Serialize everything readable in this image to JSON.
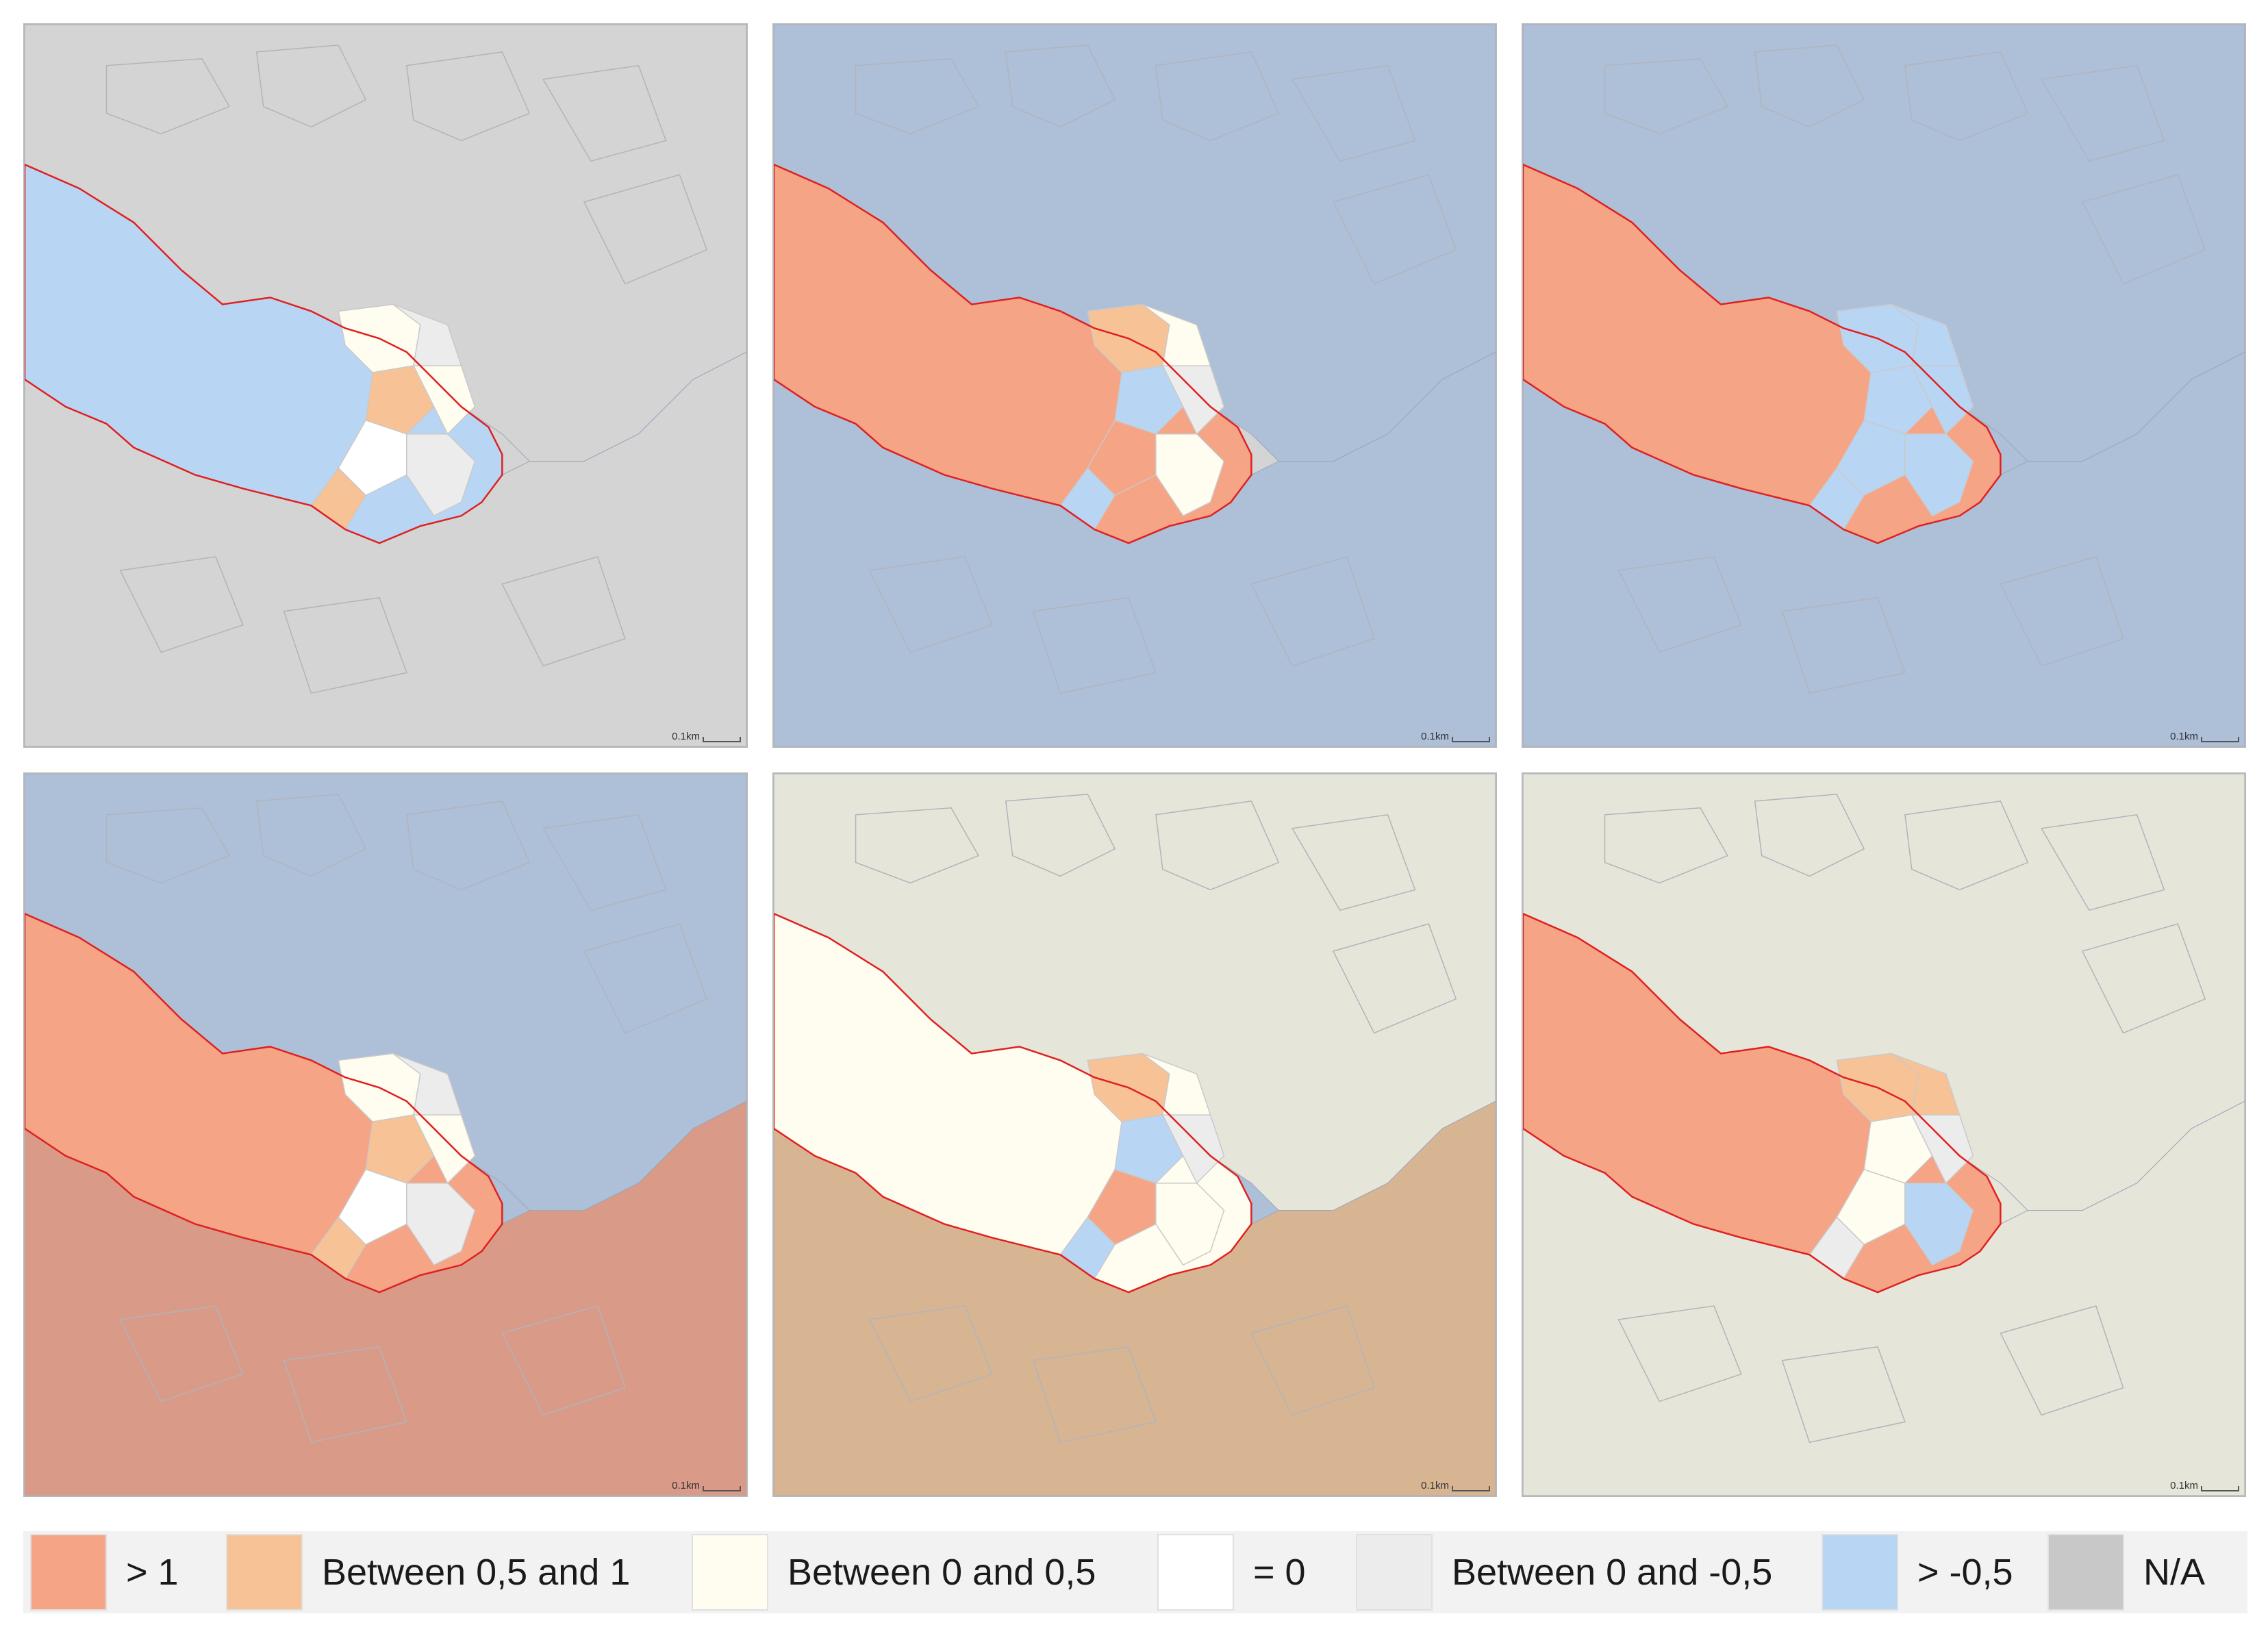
{
  "scale_label": "0.1km",
  "colors": {
    "gt1": "#f5a486",
    "b05_1": "#f7c396",
    "b0_05": "#fffdf0",
    "eq0": "#ffffff",
    "b0_m05": "#ececec",
    "gtm05": "#b9d5f4",
    "na": "#c8c8c8",
    "base_gray": "#d4d4d4",
    "base_blue": "#aebfd8",
    "base_tan": "#d8b592",
    "base_rose": "#d99a88",
    "base_cream": "#e6e5da",
    "boundary": "#e02020"
  },
  "legend": [
    {
      "label": "> 1",
      "color": "#f5a486"
    },
    {
      "label": "Between 0,5 and 1",
      "color": "#f7c396"
    },
    {
      "label": "Between 0 and 0,5",
      "color": "#fffdf0"
    },
    {
      "label": "= 0",
      "color": "#ffffff"
    },
    {
      "label": "Between 0 and -0,5",
      "color": "#ececec"
    },
    {
      "label": "> -0,5",
      "color": "#b9d5f4"
    },
    {
      "label": "N/A",
      "color": "#c8c8c8"
    }
  ],
  "maps": [
    {
      "id": "map-1",
      "background": "base_gray",
      "study_area": "gtm05",
      "land_above": "base_gray",
      "land_below": "base_gray",
      "bay": "mixed-cream"
    },
    {
      "id": "map-2",
      "background": "base_gray",
      "study_area": "gt1",
      "land_above": "base_blue",
      "land_below": "base_blue",
      "bay": "mixed-warm"
    },
    {
      "id": "map-3",
      "background": "base_blue",
      "study_area": "gt1",
      "land_above": "base_blue",
      "land_below": "base_blue",
      "bay": "blue-ring"
    },
    {
      "id": "map-4",
      "background": "base_blue",
      "study_area": "gt1",
      "land_above": "base_blue",
      "land_below": "base_rose",
      "bay": "mixed-cream"
    },
    {
      "id": "map-5",
      "background": "base_blue",
      "study_area": "b0_05",
      "land_above": "base_cream",
      "land_below": "base_tan",
      "bay": "mixed-warm"
    },
    {
      "id": "map-6",
      "background": "base_cream",
      "study_area": "gt1",
      "land_above": "base_cream",
      "land_below": "base_cream",
      "bay": "orange-ring"
    }
  ]
}
